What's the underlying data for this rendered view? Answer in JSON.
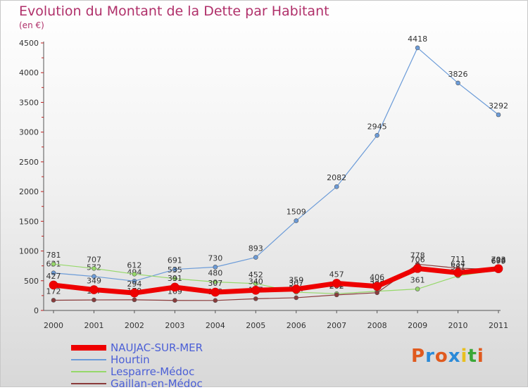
{
  "header": {
    "title": "Evolution du Montant de la Dette par Habitant",
    "unit": "(en €)"
  },
  "chart_data": {
    "type": "line",
    "x": [
      "2000",
      "2001",
      "2002",
      "2003",
      "2004",
      "2005",
      "2006",
      "2007",
      "2008",
      "2009",
      "2010",
      "2011"
    ],
    "ylim": [
      0,
      4500
    ],
    "yticks": [
      0,
      500,
      1000,
      1500,
      2000,
      2500,
      3000,
      3500,
      4000,
      4500
    ],
    "grid": false,
    "legend": "bottom-left",
    "series": [
      {
        "name": "Hourtin",
        "color": "#6b9bd8",
        "values": [
          631,
          572,
          494,
          691,
          730,
          893,
          1509,
          2082,
          2945,
          4418,
          3826,
          3292
        ]
      },
      {
        "name": "Lesparre-Médoc",
        "color": "#96d86a",
        "values": [
          781,
          707,
          612,
          535,
          480,
          452,
          307,
          282,
          323,
          361,
          581,
          679
        ]
      },
      {
        "name": "Gaillan-en-Médoc",
        "color": "#8a3b3b",
        "values": [
          172,
          177,
          179,
          169,
          168,
          197,
          214,
          262,
          298,
          778,
          711,
          688
        ]
      },
      {
        "name": "NAUJAC-SUR-MER",
        "color": "#ee0000",
        "values": [
          427,
          349,
          294,
          391,
          307,
          340,
          359,
          457,
          406,
          706,
          634,
          703
        ]
      }
    ]
  },
  "legend": {
    "items": [
      {
        "name": "NAUJAC-SUR-MER",
        "color": "#ee0000"
      },
      {
        "name": "Hourtin",
        "color": "#6b9bd8"
      },
      {
        "name": "Lesparre-Médoc",
        "color": "#96d86a"
      },
      {
        "name": "Gaillan-en-Médoc",
        "color": "#8a3b3b"
      }
    ]
  },
  "logo": {
    "text": "Proxiti",
    "colors": [
      "#e05a1e",
      "#2a8ad8",
      "#e05a1e",
      "#2a8ad8",
      "#e8c020",
      "#3aa838",
      "#e05a1e"
    ]
  }
}
